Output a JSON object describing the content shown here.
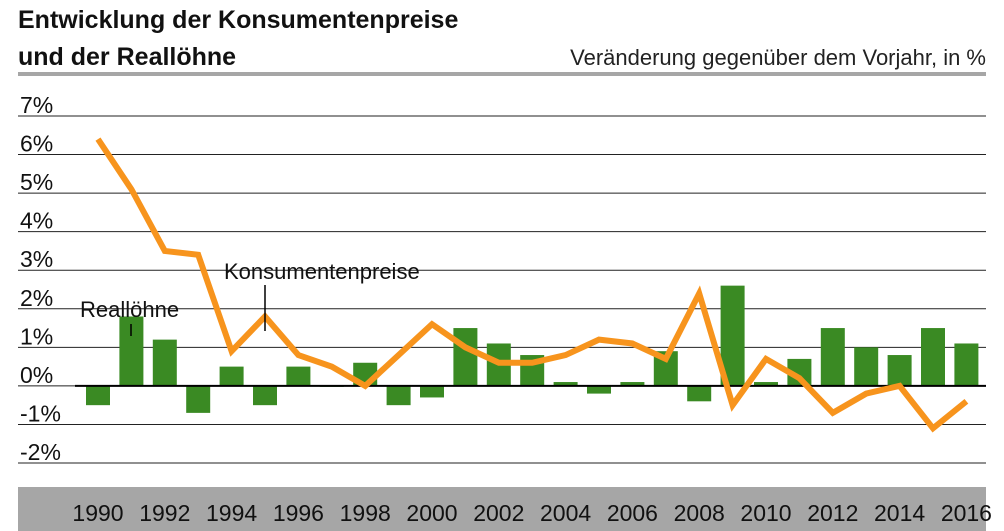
{
  "chart_data": {
    "type": "bar",
    "title_line1": "Entwicklung der Konsumentenpreise",
    "title_line2": "und der Reallöhne",
    "subtitle": "Veränderung gegenüber dem Vorjahr, in %",
    "ylim": [
      -2,
      7
    ],
    "y_ticks": [
      "7%",
      "6%",
      "5%",
      "4%",
      "3%",
      "2%",
      "1%",
      "0%",
      "-1%",
      "-2%"
    ],
    "y_tick_values": [
      7,
      6,
      5,
      4,
      3,
      2,
      1,
      0,
      -1,
      -2
    ],
    "x_tick_labels": [
      "1990",
      "1992",
      "1994",
      "1996",
      "1998",
      "2000",
      "2002",
      "2004",
      "2006",
      "2008",
      "2010",
      "2012",
      "2014",
      "2016"
    ],
    "years": [
      1990,
      1991,
      1992,
      1993,
      1994,
      1995,
      1996,
      1997,
      1998,
      1999,
      2000,
      2001,
      2002,
      2003,
      2004,
      2005,
      2006,
      2007,
      2008,
      2009,
      2010,
      2011,
      2012,
      2013,
      2014,
      2015,
      2016
    ],
    "grid": true,
    "series": [
      {
        "name": "Reallöhne",
        "kind": "bar",
        "color": "#3a8a23",
        "values": [
          -0.5,
          1.8,
          1.2,
          -0.7,
          0.5,
          -0.5,
          0.5,
          0.0,
          0.6,
          -0.5,
          -0.3,
          1.5,
          1.1,
          0.8,
          0.1,
          -0.2,
          0.1,
          0.9,
          -0.4,
          2.6,
          0.1,
          0.7,
          1.5,
          1.0,
          0.8,
          1.5,
          1.1
        ]
      },
      {
        "name": "Konsumentenpreise",
        "kind": "line",
        "color": "#f7941d",
        "values": [
          6.4,
          5.1,
          3.5,
          3.4,
          0.9,
          1.8,
          0.8,
          0.5,
          0.0,
          0.8,
          1.6,
          1.0,
          0.6,
          0.6,
          0.8,
          1.2,
          1.1,
          0.7,
          2.4,
          -0.5,
          0.7,
          0.2,
          -0.7,
          -0.2,
          0.0,
          -1.1,
          -0.4
        ]
      }
    ],
    "annotations": {
      "bar_label": "Reallöhne",
      "line_label": "Konsumentenpreise"
    },
    "colors": {
      "bar": "#3a8a23",
      "line": "#f7941d",
      "axis_band": "#a6a6a6",
      "gridline": "#222222"
    }
  }
}
